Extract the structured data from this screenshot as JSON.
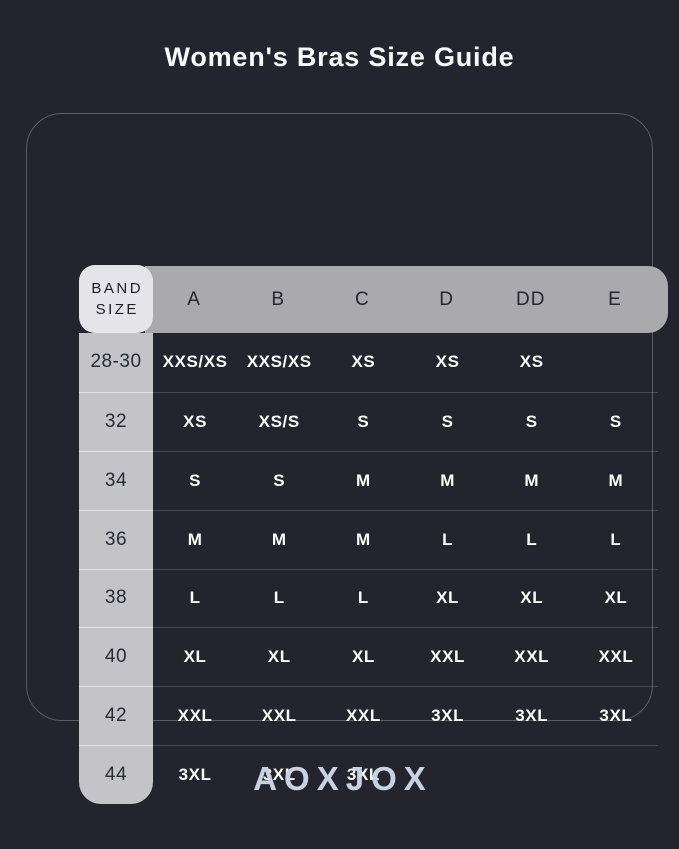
{
  "title": "Women's Bras Size Guide",
  "brand": "AOXJOX",
  "table": {
    "corner_label_line1": "BAND",
    "corner_label_line2": "SIZE",
    "cup_columns": [
      "A",
      "B",
      "C",
      "D",
      "DD",
      "E"
    ],
    "rows": [
      {
        "band": "28-30",
        "cells": [
          "XXS/XS",
          "XXS/XS",
          "XS",
          "XS",
          "XS",
          ""
        ]
      },
      {
        "band": "32",
        "cells": [
          "XS",
          "XS/S",
          "S",
          "S",
          "S",
          "S"
        ]
      },
      {
        "band": "34",
        "cells": [
          "S",
          "S",
          "M",
          "M",
          "M",
          "M"
        ]
      },
      {
        "band": "36",
        "cells": [
          "M",
          "M",
          "M",
          "L",
          "L",
          "L"
        ]
      },
      {
        "band": "38",
        "cells": [
          "L",
          "L",
          "L",
          "XL",
          "XL",
          "XL"
        ]
      },
      {
        "band": "40",
        "cells": [
          "XL",
          "XL",
          "XL",
          "XXL",
          "XXL",
          "XXL"
        ]
      },
      {
        "band": "42",
        "cells": [
          "XXL",
          "XXL",
          "XXL",
          "3XL",
          "3XL",
          "3XL"
        ]
      },
      {
        "band": "44",
        "cells": [
          "3XL",
          "3XL",
          "3XL",
          "",
          "",
          ""
        ]
      }
    ]
  },
  "colors": {
    "background": "#24242e",
    "card_border": "rgba(255,255,255,0.25)",
    "header_bar": "#a9a9ae",
    "corner_tile": "#e5e5e9",
    "band_column": "#c3c3c8",
    "data_text": "#fafafa",
    "dark_text": "#26262e",
    "brand_text": "#c9d2e2"
  },
  "chart_data": {
    "type": "table",
    "title": "Women's Bras Size Guide",
    "columns": [
      "BAND SIZE",
      "A",
      "B",
      "C",
      "D",
      "DD",
      "E"
    ],
    "rows": [
      [
        "28-30",
        "XXS/XS",
        "XXS/XS",
        "XS",
        "XS",
        "XS",
        ""
      ],
      [
        "32",
        "XS",
        "XS/S",
        "S",
        "S",
        "S",
        "S"
      ],
      [
        "34",
        "S",
        "S",
        "M",
        "M",
        "M",
        "M"
      ],
      [
        "36",
        "M",
        "M",
        "M",
        "L",
        "L",
        "L"
      ],
      [
        "38",
        "L",
        "L",
        "L",
        "XL",
        "XL",
        "XL"
      ],
      [
        "40",
        "XL",
        "XL",
        "XL",
        "XXL",
        "XXL",
        "XXL"
      ],
      [
        "42",
        "XXL",
        "XXL",
        "XXL",
        "3XL",
        "3XL",
        "3XL"
      ],
      [
        "44",
        "3XL",
        "3XL",
        "3XL",
        "",
        "",
        ""
      ]
    ]
  }
}
